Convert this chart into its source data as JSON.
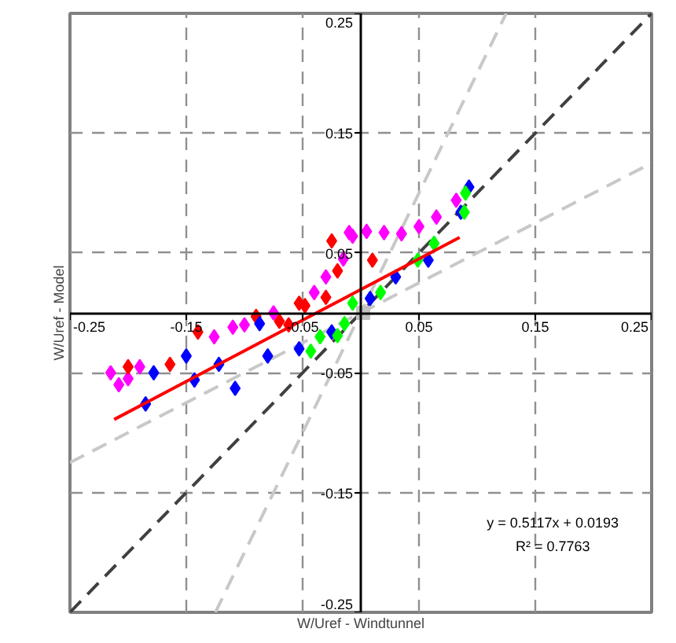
{
  "chart_data": {
    "type": "scatter",
    "xlabel": "W/Uref - Windtunnel",
    "ylabel": "W/Uref - Model",
    "xlim": [
      -0.25,
      0.25
    ],
    "ylim": [
      -0.25,
      0.25
    ],
    "xticks": [
      -0.25,
      -0.15,
      -0.05,
      0.05,
      0.15,
      0.25
    ],
    "yticks": [
      -0.25,
      -0.15,
      -0.05,
      0.05,
      0.15,
      0.25
    ],
    "grid": true,
    "marker": "diamond",
    "series": [
      {
        "type": "line",
        "marker": "none",
        "color": "#404040",
        "line_style": "dashed",
        "x": [
          -0.25,
          0.25
        ],
        "values": [
          -0.25,
          0.25
        ]
      },
      {
        "type": "line",
        "marker": "none",
        "color": "#c8c8c8",
        "line_style": "dashed",
        "x": [
          -0.125,
          0.125
        ],
        "values": [
          -0.25,
          0.25
        ]
      },
      {
        "type": "line",
        "marker": "none",
        "color": "#c8c8c8",
        "line_style": "dashed",
        "x": [
          -0.25,
          0.25
        ],
        "values": [
          -0.125,
          0.125
        ]
      },
      {
        "color": "#ff00ff",
        "x": [
          -0.215,
          -0.208,
          -0.2,
          -0.19,
          -0.126,
          -0.11,
          -0.1,
          -0.075,
          -0.04,
          -0.03,
          -0.015,
          -0.007,
          -0.01,
          0.005,
          0.02,
          0.035,
          0.05,
          0.065,
          0.082
        ],
        "values": [
          -0.05,
          -0.06,
          -0.055,
          -0.045,
          -0.02,
          -0.012,
          -0.01,
          0.0,
          0.017,
          0.03,
          0.045,
          0.064,
          0.067,
          0.068,
          0.067,
          0.066,
          0.072,
          0.08,
          0.094
        ]
      },
      {
        "color": "#ff0000",
        "x": [
          -0.2,
          -0.164,
          -0.14,
          -0.09,
          -0.07,
          -0.062,
          -0.053,
          -0.048,
          -0.03,
          -0.025,
          -0.02,
          0.01
        ],
        "values": [
          -0.045,
          -0.043,
          -0.016,
          -0.003,
          -0.007,
          -0.01,
          0.008,
          0.006,
          0.013,
          0.06,
          0.035,
          0.044
        ]
      },
      {
        "color": "#0000ff",
        "x": [
          -0.185,
          -0.178,
          -0.15,
          -0.143,
          -0.122,
          -0.108,
          -0.087,
          -0.08,
          -0.053,
          -0.025,
          0.008,
          0.03,
          0.058,
          0.086,
          0.093
        ],
        "values": [
          -0.076,
          -0.05,
          -0.036,
          -0.056,
          -0.043,
          -0.063,
          -0.009,
          -0.036,
          -0.03,
          -0.016,
          0.012,
          0.03,
          0.044,
          0.084,
          0.105
        ]
      },
      {
        "color": "#00ff00",
        "x": [
          -0.043,
          -0.035,
          -0.02,
          -0.014,
          -0.007,
          0.017,
          0.049,
          0.063,
          0.089,
          0.09
        ],
        "values": [
          -0.032,
          -0.02,
          -0.019,
          -0.009,
          0.008,
          0.017,
          0.044,
          0.058,
          0.084,
          0.1
        ]
      },
      {
        "color": "#c0c0c0",
        "marker": "square",
        "x": [
          0.002
        ],
        "values": [
          0.0
        ]
      },
      {
        "type": "line",
        "marker": "none",
        "color": "#ff0000",
        "line_style": "solid",
        "x": [
          -0.212,
          0.085
        ],
        "values": [
          -0.089,
          0.063
        ]
      }
    ],
    "annotations": [
      "y = 0.5117x + 0.0193",
      "R² = 0.7763"
    ]
  }
}
